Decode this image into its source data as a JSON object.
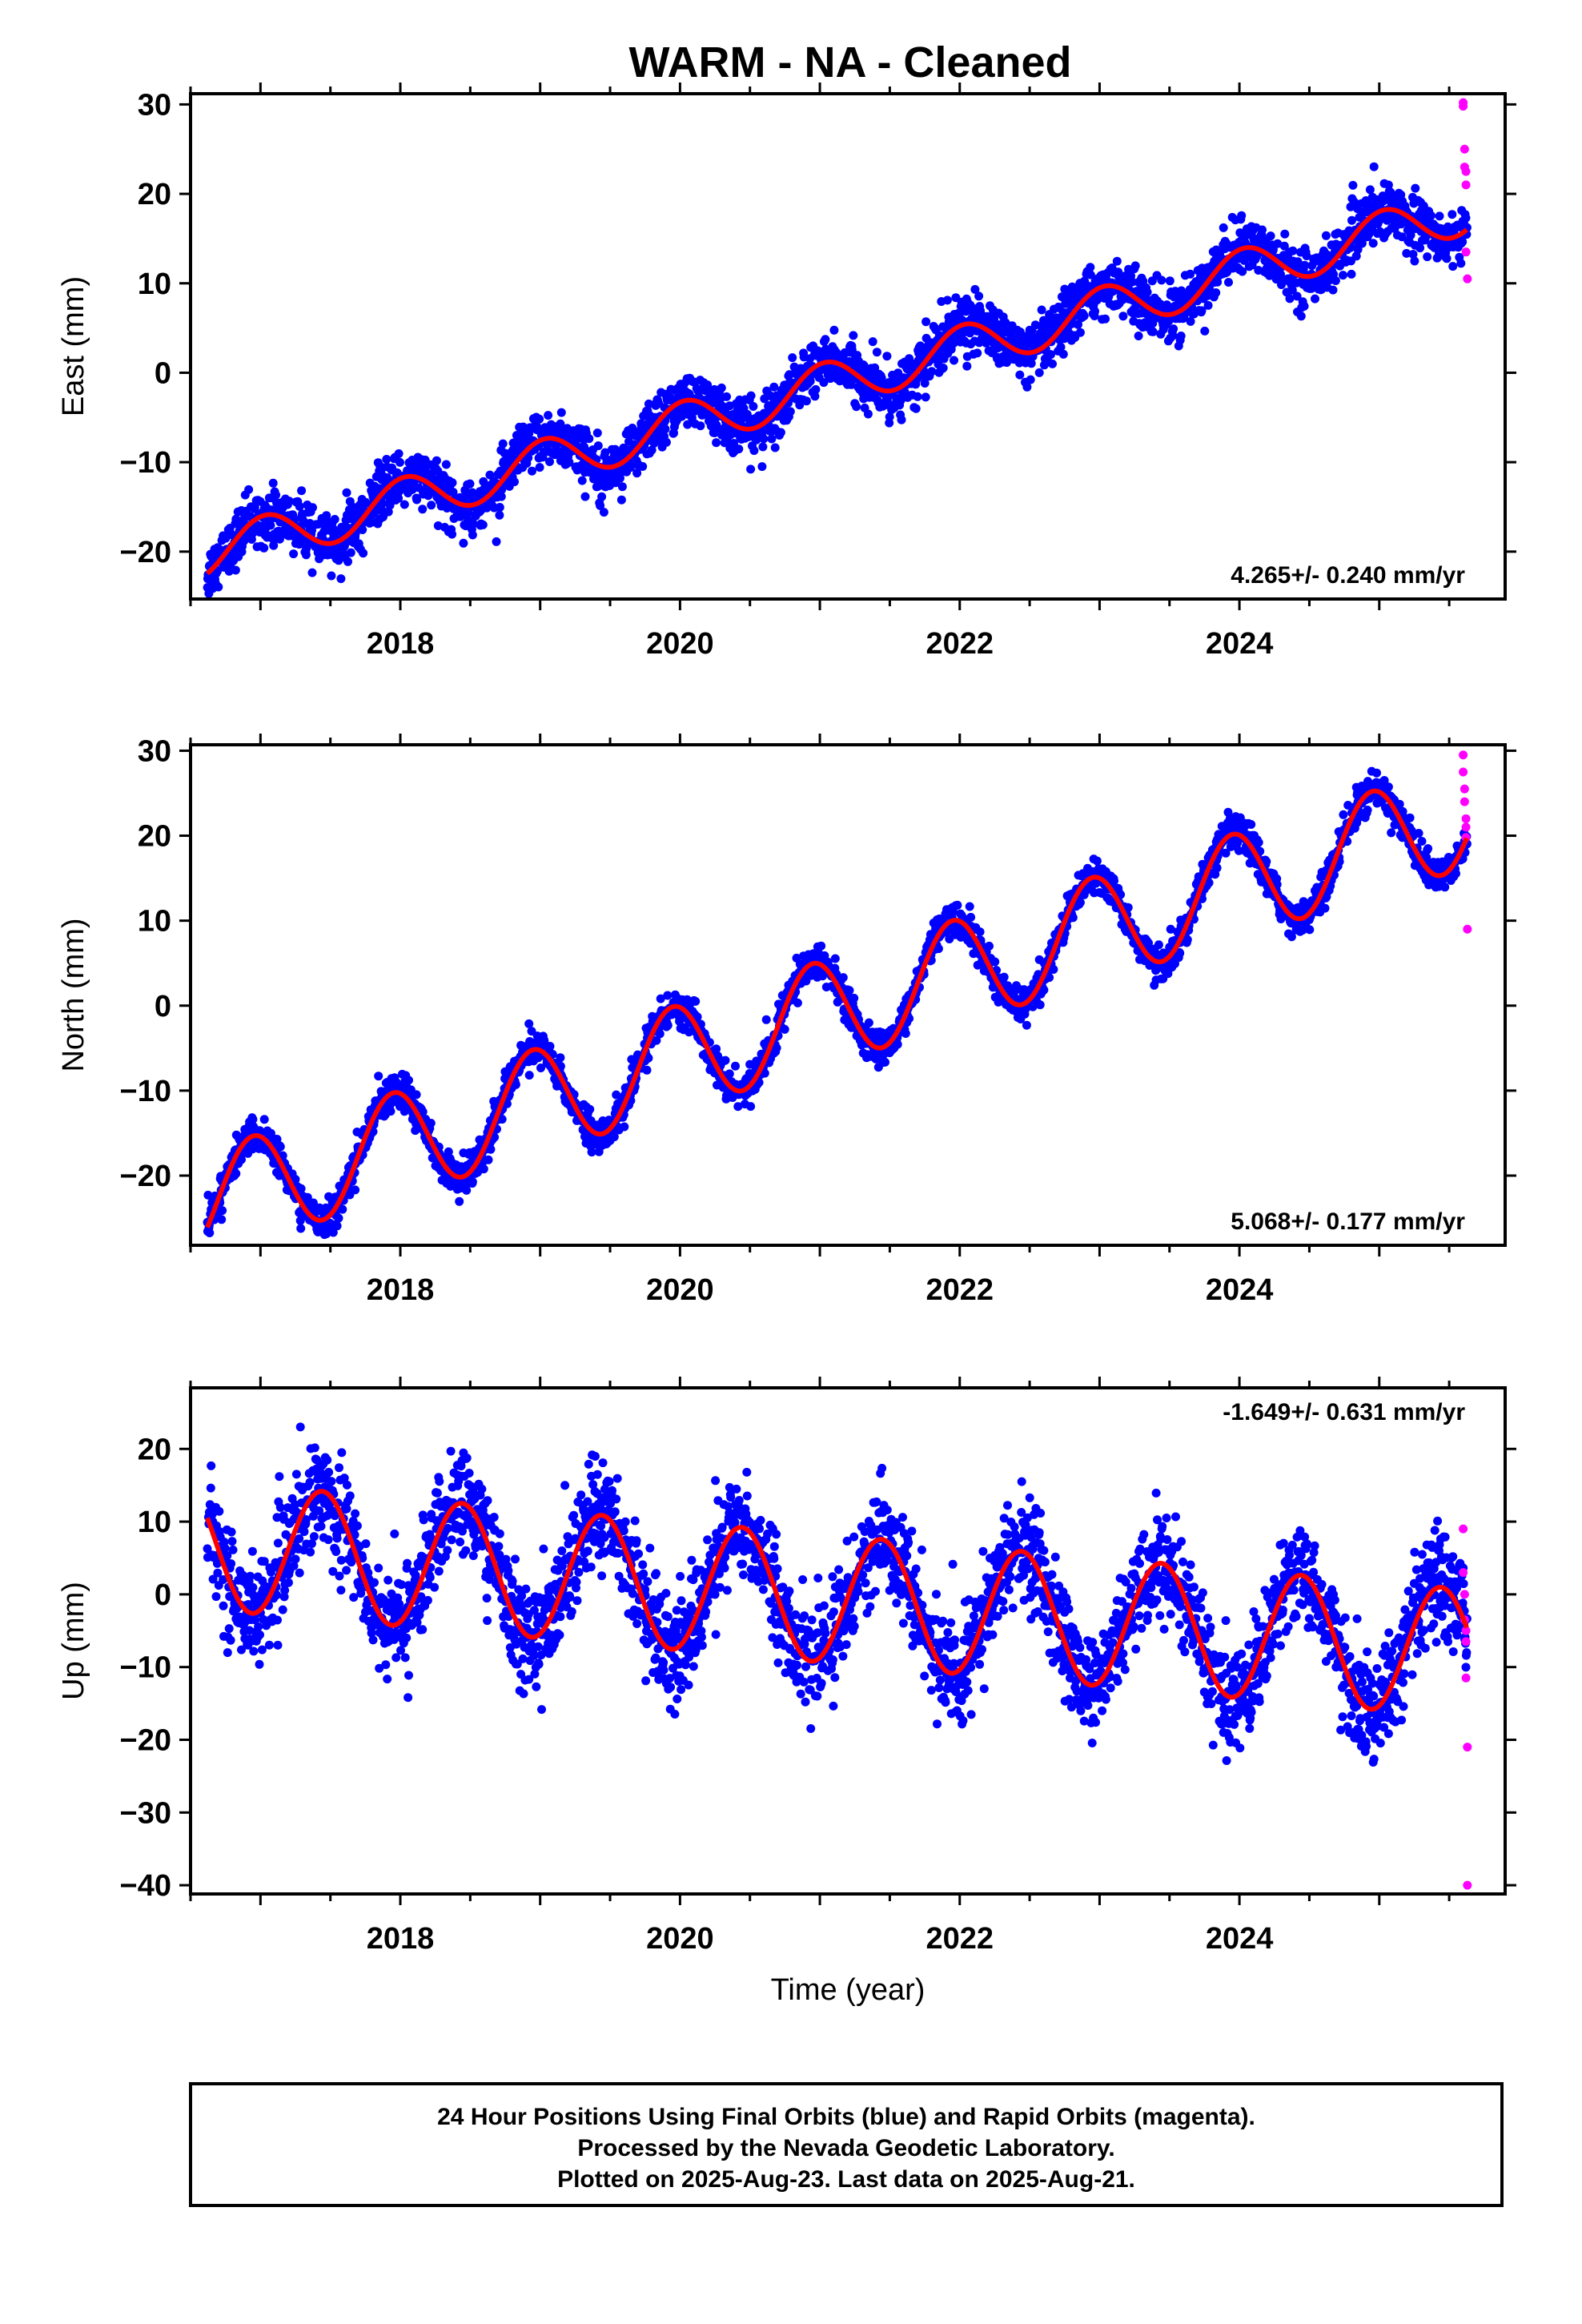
{
  "title": "WARM  - NA - Cleaned",
  "footer": {
    "line1": "24 Hour Positions Using Final Orbits (blue) and Rapid Orbits (magenta).",
    "line2": "Processed by the Nevada Geodetic Laboratory.",
    "line3": "Plotted on 2025-Aug-23. Last data on 2025-Aug-21."
  },
  "colors": {
    "final": "#0000ff",
    "rapid": "#ff00ff",
    "model": "#ff0000",
    "frame": "#000000"
  },
  "chart_data": [
    {
      "type": "scatter",
      "ylabel": "East (mm)",
      "xlabel": "",
      "xlim": [
        2016.5,
        2025.9
      ],
      "ylim": [
        -25.3,
        31.2
      ],
      "yticks": [
        -20,
        -10,
        0,
        10,
        20,
        30
      ],
      "xticks": [
        2018,
        2020,
        2022,
        2024
      ],
      "rate_label": "4.265+/- 0.240 mm/yr",
      "rate_position": "bottom-right",
      "start": 2016.62,
      "end": 2025.63,
      "model": {
        "trend": 4.265,
        "intercept": -1.6,
        "ref_year": 2021,
        "annual_amp": 2.6,
        "annual_phase": 1.4,
        "noise_mm": 1.5
      },
      "final_series": "blue dots: 24 hour final-orbit positions",
      "rapid_points": {
        "x": [
          2025.6,
          2025.6,
          2025.61,
          2025.61,
          2025.62,
          2025.62,
          2025.62,
          2025.63
        ],
        "y": [
          30.2,
          29.8,
          25.0,
          23.0,
          22.5,
          21.0,
          13.5,
          10.5
        ]
      }
    },
    {
      "type": "scatter",
      "ylabel": "North (mm)",
      "xlabel": "",
      "xlim": [
        2016.5,
        2025.9
      ],
      "ylim": [
        -28.2,
        30.7
      ],
      "yticks": [
        -20,
        -10,
        0,
        10,
        20,
        30
      ],
      "xticks": [
        2018,
        2020,
        2022,
        2024
      ],
      "rate_label": "5.068+/- 0.177 mm/yr",
      "rate_position": "bottom-right",
      "start": 2016.62,
      "end": 2025.63,
      "model": {
        "trend": 5.068,
        "intercept": -1.0,
        "ref_year": 2021,
        "annual_amp": 6.2,
        "annual_phase": 1.9,
        "noise_mm": 1.0
      },
      "final_series": "blue dots: 24 hour final-orbit positions",
      "rapid_points": {
        "x": [
          2025.6,
          2025.6,
          2025.61,
          2025.61,
          2025.62,
          2025.62,
          2025.62,
          2025.63
        ],
        "y": [
          29.5,
          27.5,
          25.5,
          24.0,
          22.0,
          21.0,
          19.8,
          9.0
        ]
      }
    },
    {
      "type": "scatter",
      "ylabel": "Up (mm)",
      "xlabel": "Time (year)",
      "xlim": [
        2016.5,
        2025.9
      ],
      "ylim": [
        -41.2,
        28.4
      ],
      "yticks": [
        -40,
        -30,
        -20,
        -10,
        0,
        10,
        20
      ],
      "xticks": [
        2018,
        2020,
        2022,
        2024
      ],
      "rate_label": "-1.649+/- 0.631 mm/yr",
      "rate_position": "top-right",
      "start": 2016.62,
      "end": 2025.63,
      "model": {
        "trend": -1.649,
        "intercept": -0.5,
        "ref_year": 2021,
        "annual_amp": 8.8,
        "annual_phase": -1.2,
        "noise_mm": 3.5
      },
      "final_series": "blue dots: 24 hour final-orbit positions",
      "rapid_points": {
        "x": [
          2025.6,
          2025.6,
          2025.61,
          2025.61,
          2025.62,
          2025.62,
          2025.62,
          2025.63,
          2025.63
        ],
        "y": [
          9.0,
          3.0,
          0.0,
          -3.5,
          -5.0,
          -6.5,
          -11.5,
          -21.0,
          -40.0
        ]
      }
    }
  ]
}
